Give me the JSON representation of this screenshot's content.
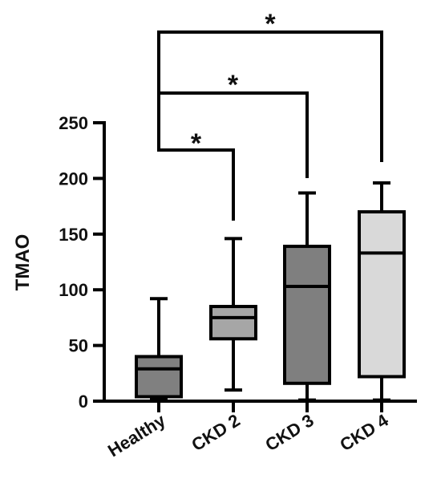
{
  "chart_data": {
    "type": "box",
    "ylabel": "TMAO",
    "ylim": [
      0,
      250
    ],
    "yticks": [
      "0",
      "50",
      "100",
      "150",
      "200",
      "250"
    ],
    "categories": [
      "Healthy",
      "CKD 2",
      "CKD 3",
      "CKD 4"
    ],
    "boxes": [
      {
        "category": "Healthy",
        "min": 2,
        "q1": 4,
        "median": 29,
        "q3": 40,
        "max": 92,
        "fill": "#808080"
      },
      {
        "category": "CKD 2",
        "min": 10,
        "q1": 56,
        "median": 75,
        "q3": 85,
        "max": 146,
        "fill": "#a6a6a6"
      },
      {
        "category": "CKD 3",
        "min": 1,
        "q1": 16,
        "median": 103,
        "q3": 139,
        "max": 187,
        "fill": "#7f7f7f"
      },
      {
        "category": "CKD 4",
        "min": 1,
        "q1": 22,
        "median": 133,
        "q3": 170,
        "max": 196,
        "fill": "#d9d9d9"
      }
    ],
    "significance": [
      {
        "from": "Healthy",
        "to": "CKD 2",
        "label": "*"
      },
      {
        "from": "Healthy",
        "to": "CKD 3",
        "label": "*"
      },
      {
        "from": "Healthy",
        "to": "CKD 4",
        "label": "*"
      }
    ]
  }
}
